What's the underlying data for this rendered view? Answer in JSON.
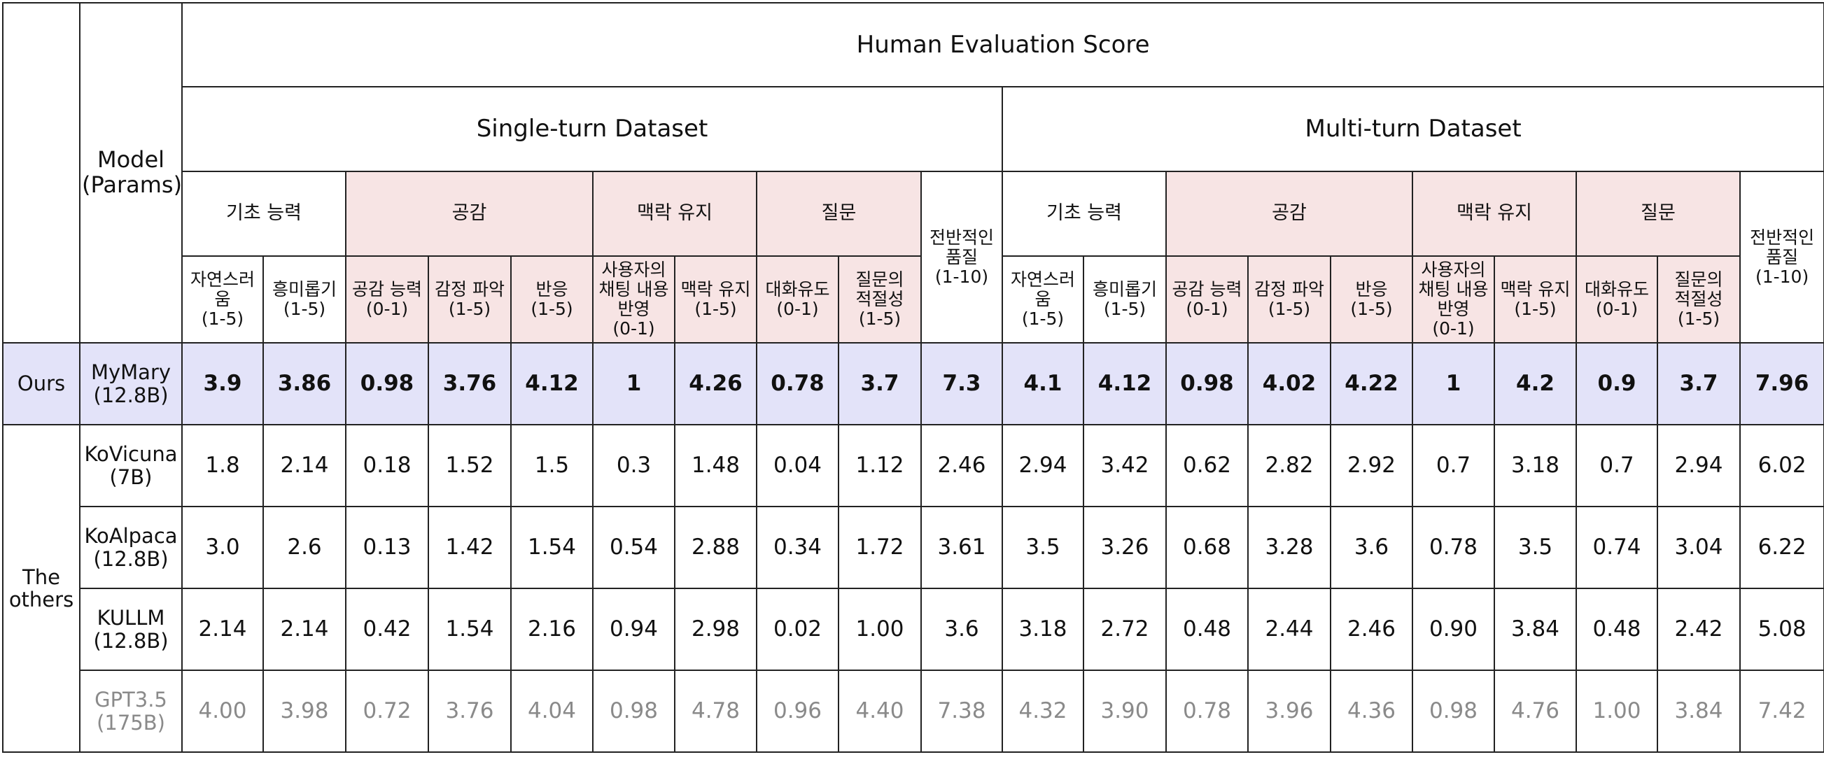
{
  "table": {
    "title": "Human Evaluation Score",
    "corner": "Model\n(Params)",
    "datasets": [
      "Single-turn Dataset",
      "Multi-turn Dataset"
    ],
    "categories": [
      {
        "label": "기초 능력",
        "metrics": [
          "자연스러움\n(1-5)",
          "흥미롭기\n(1-5)"
        ]
      },
      {
        "label": "공감",
        "metrics": [
          "공감 능력\n(0-1)",
          "감정 파악\n(1-5)",
          "반응\n(1-5)"
        ]
      },
      {
        "label": "맥락 유지",
        "metrics": [
          "사용자의\n채팅 내용\n반영\n(0-1)",
          "맥락 유지\n(1-5)"
        ]
      },
      {
        "label": "질문",
        "metrics": [
          "대화유도\n(0-1)",
          "질문의\n적절성\n(1-5)"
        ]
      }
    ],
    "overall": "전반적인\n품질\n(1-10)",
    "groups": [
      "Ours",
      "The\nothers"
    ],
    "rows": [
      {
        "model": "MyMary\n(12.8B)",
        "values": [
          "3.9",
          "3.86",
          "0.98",
          "3.76",
          "4.12",
          "1",
          "4.26",
          "0.78",
          "3.7",
          "7.3",
          "4.1",
          "4.12",
          "0.98",
          "4.02",
          "4.22",
          "1",
          "4.2",
          "0.9",
          "3.7",
          "7.96"
        ]
      },
      {
        "model": "KoVicuna\n(7B)",
        "values": [
          "1.8",
          "2.14",
          "0.18",
          "1.52",
          "1.5",
          "0.3",
          "1.48",
          "0.04",
          "1.12",
          "2.46",
          "2.94",
          "3.42",
          "0.62",
          "2.82",
          "2.92",
          "0.7",
          "3.18",
          "0.7",
          "2.94",
          "6.02"
        ]
      },
      {
        "model": "KoAlpaca\n(12.8B)",
        "values": [
          "3.0",
          "2.6",
          "0.13",
          "1.42",
          "1.54",
          "0.54",
          "2.88",
          "0.34",
          "1.72",
          "3.61",
          "3.5",
          "3.26",
          "0.68",
          "3.28",
          "3.6",
          "0.78",
          "3.5",
          "0.74",
          "3.04",
          "6.22"
        ]
      },
      {
        "model": "KULLM\n(12.8B)",
        "values": [
          "2.14",
          "2.14",
          "0.42",
          "1.54",
          "2.16",
          "0.94",
          "2.98",
          "0.02",
          "1.00",
          "3.6",
          "3.18",
          "2.72",
          "0.48",
          "2.44",
          "2.46",
          "0.90",
          "3.84",
          "0.48",
          "2.42",
          "5.08"
        ]
      },
      {
        "model": "GPT3.5\n(175B)",
        "values": [
          "4.00",
          "3.98",
          "0.72",
          "3.76",
          "4.04",
          "0.98",
          "4.78",
          "0.96",
          "4.40",
          "7.38",
          "4.32",
          "3.90",
          "0.78",
          "3.96",
          "4.36",
          "0.98",
          "4.76",
          "1.00",
          "3.84",
          "7.42"
        ]
      }
    ]
  },
  "colors": {
    "highlight_row": "#e3e3f9",
    "category_fill": "#f7e4e4",
    "muted_text": "#8a8a8a"
  }
}
